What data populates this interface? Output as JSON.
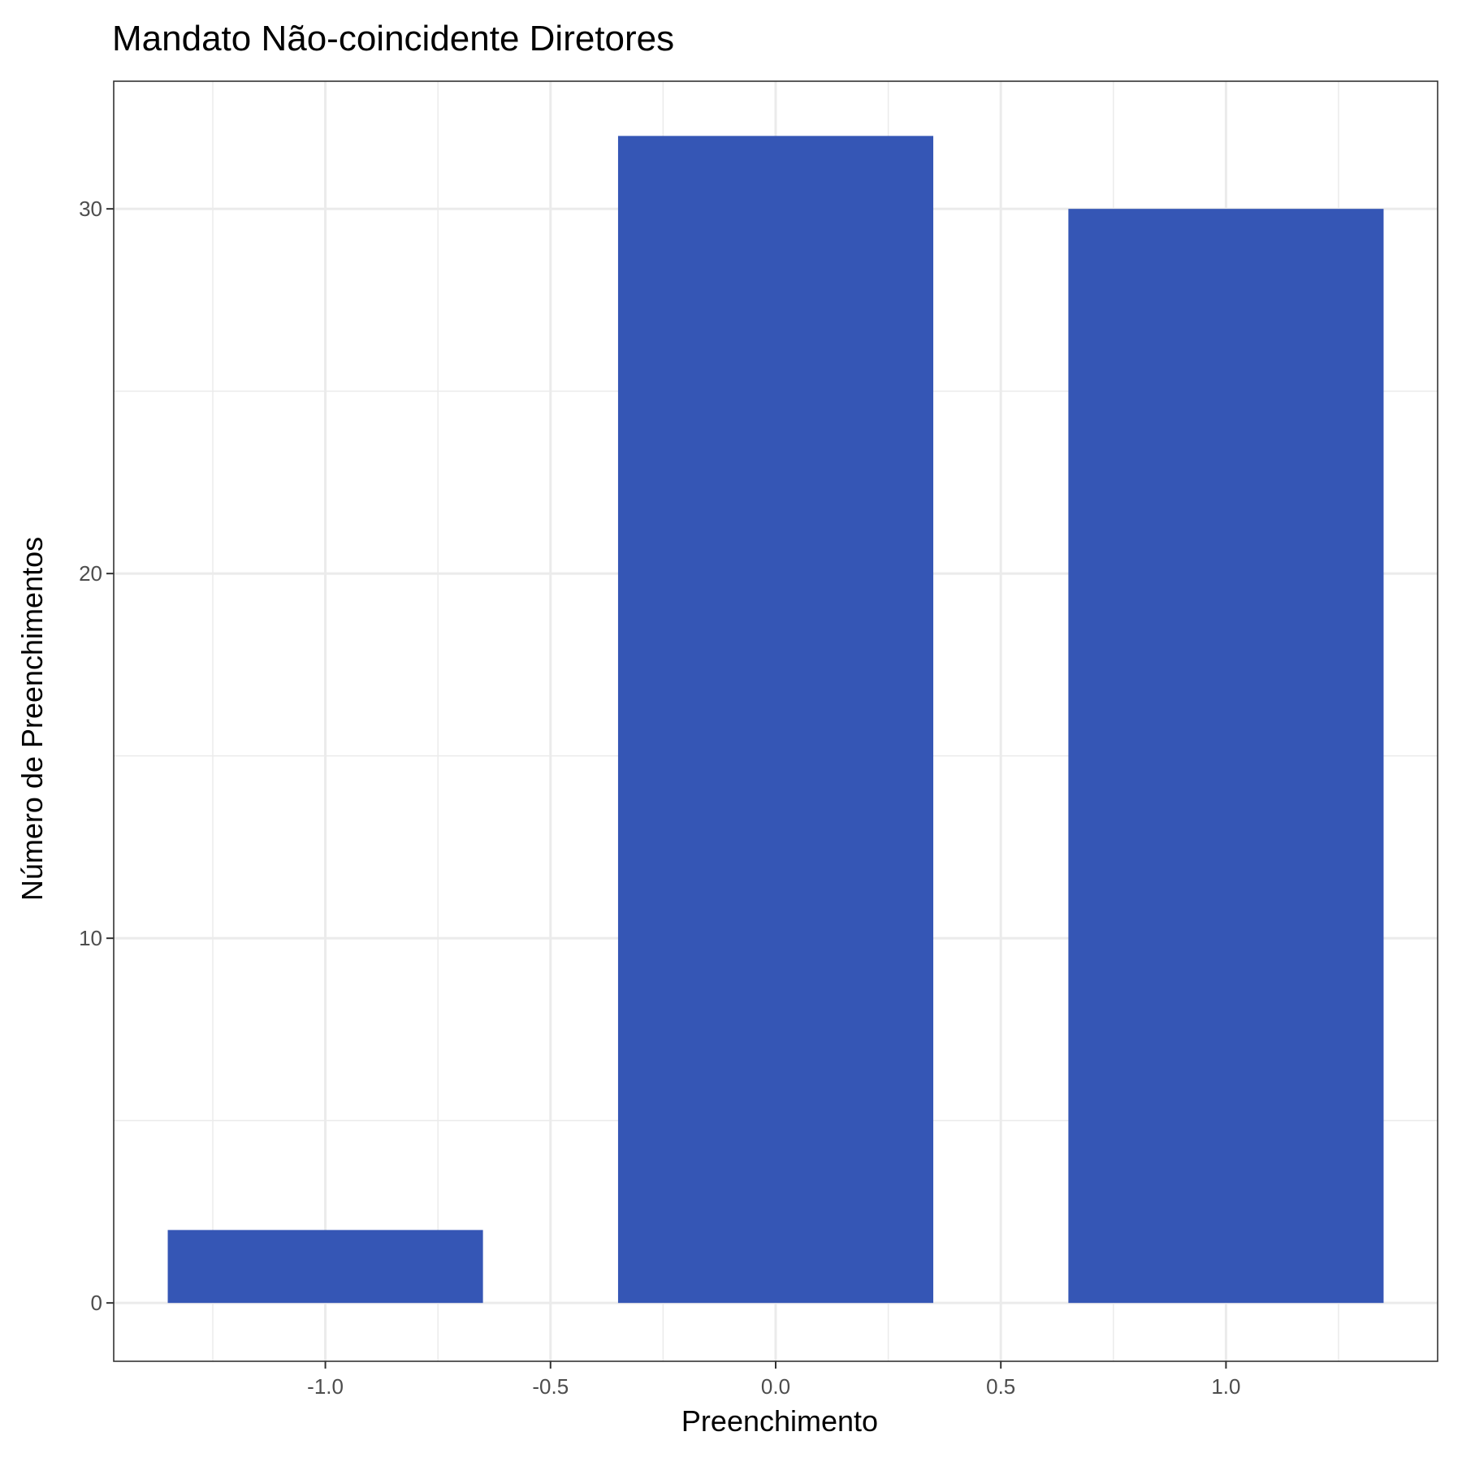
{
  "chart_data": {
    "type": "bar",
    "title": "Mandato Não-coincidente Diretores",
    "xlabel": "Preenchimento",
    "ylabel": "Número de Preenchimentos",
    "x": [
      -1,
      0,
      1
    ],
    "values": [
      2,
      32,
      30
    ],
    "bar_width": 0.7,
    "xlim": [
      -1.47,
      1.47
    ],
    "ylim": [
      -1.6,
      33.5
    ],
    "x_ticks": [
      -1.0,
      -0.5,
      0.0,
      0.5,
      1.0
    ],
    "x_tick_labels": [
      "-1.0",
      "-0.5",
      "0.0",
      "0.5",
      "1.0"
    ],
    "y_ticks": [
      0,
      10,
      20,
      30
    ],
    "y_tick_labels": [
      "0",
      "10",
      "20",
      "30"
    ],
    "grid": true,
    "legend": "none",
    "colors": {
      "bar": "#3556B5",
      "grid": "#EBEBEB",
      "panel_border": "#333333",
      "tick": "#333333"
    }
  }
}
